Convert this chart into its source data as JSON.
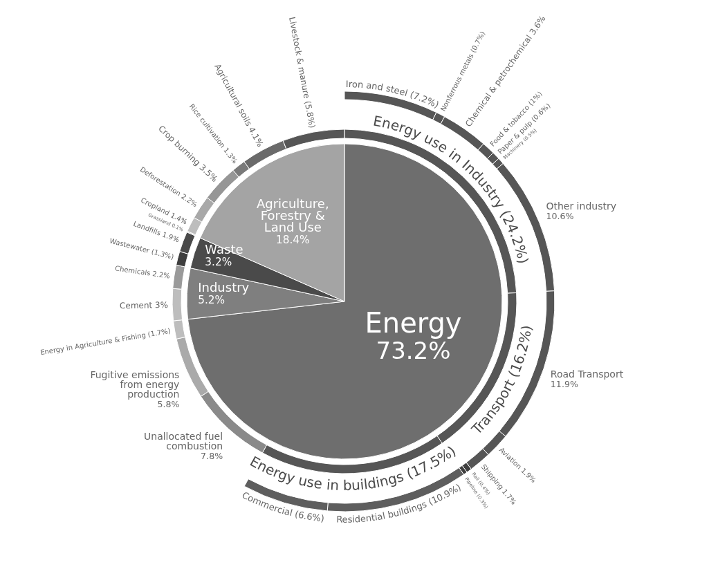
{
  "chart_data": [
    {
      "type": "pie",
      "categories": [
        "Energy",
        "Industry",
        "Waste",
        "Agriculture, Forestry & Land Use"
      ],
      "values": [
        73.2,
        5.2,
        3.2,
        18.4
      ],
      "colors": [
        "#6e6e6e",
        "#7f7f7f",
        "#4a4a4a",
        "#a4a4a4"
      ],
      "value_labels": [
        "73.2%",
        "5.2%",
        "3.2%",
        "18.4%"
      ]
    },
    {
      "type": "donut",
      "categories": [
        "Energy use in Industry",
        "Transport",
        "Energy use in buildings",
        "Unallocated fuel combustion",
        "Fugitive emissions from energy production",
        "Energy in Agriculture & Fishing",
        "Cement",
        "Chemicals",
        "Wastewater",
        "Landfills",
        "Grassland",
        "Cropland",
        "Deforestation",
        "Crop burning",
        "Rice cultivation",
        "Agricultural soils",
        "Livestock & manure"
      ],
      "values": [
        24.2,
        16.2,
        17.5,
        7.8,
        5.8,
        1.7,
        3,
        2.2,
        1.3,
        1.9,
        0.1,
        1.4,
        2.2,
        3.5,
        1.3,
        4.1,
        5.8
      ],
      "colors": [
        "#565656",
        "#565656",
        "#565656",
        "#8a8a8a",
        "#aaaaaa",
        "#bdbdbd",
        "#bdbdbd",
        "#9a9a9a",
        "#3e3e3e",
        "#4a4a4a",
        "#c4c4c4",
        "#bdbdbd",
        "#a8a8a8",
        "#969696",
        "#7a7a7a",
        "#6a6a6a",
        "#565656"
      ],
      "value_labels": [
        "(24.2%)",
        "(16.2%)",
        "(17.5%)",
        "7.8%",
        "5.8%",
        "(1.7%)",
        "3%",
        "2.2%",
        "(1.3%)",
        "1.9%",
        "0.1%",
        "1.4%",
        "2.2%",
        "3.5%",
        "1.3%",
        "4.1%",
        "(5.8%)"
      ]
    },
    {
      "type": "donut",
      "categories": [
        "Iron and steel",
        "Nonferrous metals",
        "Chemical & petrochemical",
        "Food & tobacco",
        "Paper & pulp",
        "Machinery",
        "Other industry",
        "Road Transport",
        "Aviation",
        "Shipping",
        "Rail",
        "Pipeline",
        "Residential buildings",
        "Commercial"
      ],
      "values": [
        7.2,
        0.7,
        3.6,
        1,
        0.6,
        0.5,
        10.6,
        11.9,
        1.9,
        1.7,
        0.4,
        0.3,
        10.9,
        6.6
      ],
      "colors": [
        "#565656",
        "#565656",
        "#565656",
        "#565656",
        "#565656",
        "#565656",
        "#565656",
        "#565656",
        "#565656",
        "#565656",
        "#3e3e3e",
        "#3e3e3e",
        "#5e5e5e",
        "#5e5e5e"
      ],
      "value_labels": [
        "(7.2%)",
        "(0.7%)",
        "3.6%",
        "(1%)",
        "(0.6%)",
        "(0.5%)",
        "10.6%",
        "11.9%",
        "1.9%",
        "1.7%",
        "(0.4%)",
        "(0.3%)",
        "(10.9%)",
        "(6.6%)"
      ]
    }
  ]
}
